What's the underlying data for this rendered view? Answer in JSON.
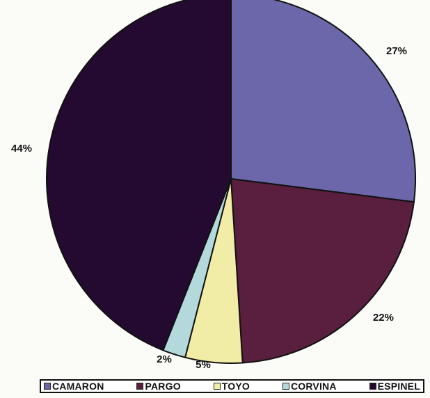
{
  "chart_data": {
    "type": "pie",
    "slices": [
      {
        "label": "CAMARON",
        "value": 27,
        "display": "27%",
        "color": "#6b67aa"
      },
      {
        "label": "PARGO",
        "value": 22,
        "display": "22%",
        "color": "#5a1e3e"
      },
      {
        "label": "TOYO",
        "value": 5,
        "display": "5%",
        "color": "#f2eda6"
      },
      {
        "label": "CORVINA",
        "value": 2,
        "display": "2%",
        "color": "#b3d9dc"
      },
      {
        "label": "ESPINEL",
        "value": 44,
        "display": "44%",
        "color": "#240a30"
      }
    ],
    "legend_position": "bottom",
    "start": "top",
    "direction": "clockwise"
  }
}
